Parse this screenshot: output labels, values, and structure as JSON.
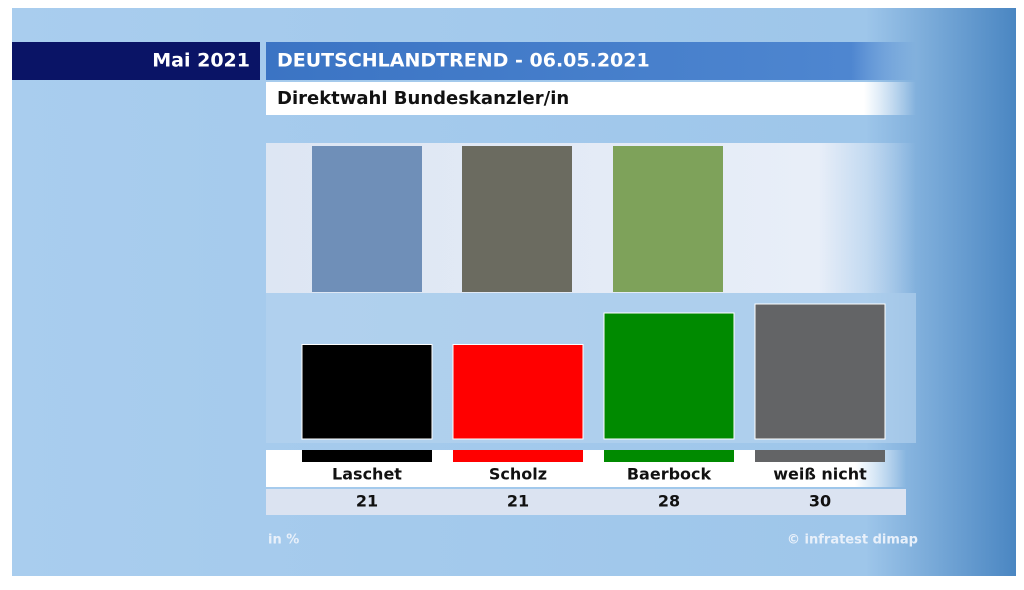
{
  "chart_data": {
    "type": "bar",
    "badge": "Mai 2021",
    "title": "DEUTSCHLANDTREND - 06.05.2021",
    "subtitle": "Direktwahl Bundeskanzler/in",
    "categories": [
      "Laschet",
      "Scholz",
      "Baerbock",
      "weiß nicht"
    ],
    "values": [
      21,
      21,
      28,
      30
    ],
    "colors": [
      "#000000",
      "#ff0000",
      "#008a00",
      "#636466"
    ],
    "unit_note": "in %",
    "source": "© infratest dimap"
  }
}
